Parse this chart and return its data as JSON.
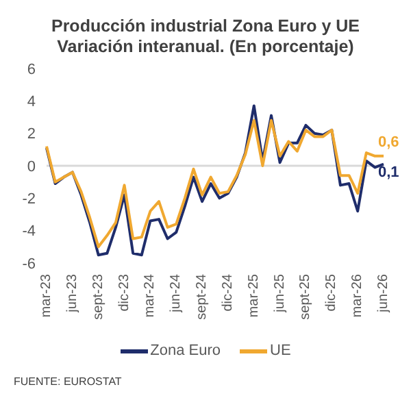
{
  "chart_data": {
    "type": "line",
    "title": "Producción industrial Zona Euro y UE\nVariación interanual. (En porcentaje)",
    "categories": [
      "mar-23",
      null,
      null,
      "jun-23",
      null,
      null,
      "sept-23",
      null,
      null,
      "dic-23",
      null,
      null,
      "mar-24",
      null,
      null,
      "jun-24",
      null,
      null,
      "sept-24",
      null,
      null,
      "dic-24",
      null,
      null,
      "mar-25",
      null,
      null,
      "jun-25",
      null,
      null,
      "sept-25",
      null,
      null,
      "dic-25",
      null,
      null,
      "mar-26",
      null,
      null,
      "jun-26"
    ],
    "series": [
      {
        "name": "Zona Euro",
        "color": "#1f2d6b",
        "values": [
          1.1,
          -1.1,
          -0.7,
          -0.4,
          -1.8,
          -3.5,
          -5.5,
          -5.4,
          -3.8,
          -1.8,
          -5.4,
          -5.5,
          -3.4,
          -3.3,
          -4.5,
          -4.1,
          -2.5,
          -0.7,
          -2.2,
          -1.1,
          -2.0,
          -1.7,
          -0.7,
          0.8,
          3.7,
          0.3,
          3.1,
          0.2,
          1.4,
          1.4,
          2.5,
          2.0,
          1.9,
          2.2,
          -1.2,
          -1.1,
          -2.8,
          0.3,
          -0.1,
          0.1
        ]
      },
      {
        "name": "UE",
        "color": "#f0a830",
        "values": [
          1.2,
          -1.0,
          -0.7,
          -0.4,
          -1.6,
          -3.2,
          -5.0,
          -4.3,
          -3.5,
          -1.2,
          -4.5,
          -4.4,
          -2.8,
          -2.2,
          -3.8,
          -3.6,
          -2.0,
          -0.2,
          -1.8,
          -0.7,
          -1.7,
          -1.6,
          -0.6,
          0.7,
          2.8,
          0.0,
          2.8,
          0.6,
          1.5,
          0.9,
          2.2,
          1.8,
          1.8,
          2.2,
          -0.6,
          -0.6,
          -1.7,
          0.8,
          0.6,
          0.6
        ]
      }
    ],
    "ylim": [
      -6,
      6
    ],
    "yticks": [
      -6,
      -4,
      -2,
      0,
      2,
      4,
      6
    ],
    "grid": false,
    "legend": "bottom",
    "marker": "none",
    "line_style": "solid",
    "ref_lines": [
      {
        "axis": "y",
        "value": 0,
        "color": "#d9d9d9"
      }
    ],
    "annotations": [
      {
        "text": "0,6",
        "x": "jun-26",
        "y": 0.6
      },
      {
        "text": "0,1",
        "x": "jun-26",
        "y": 0.1
      },
      "FUENTE: EUROSTAT"
    ]
  }
}
